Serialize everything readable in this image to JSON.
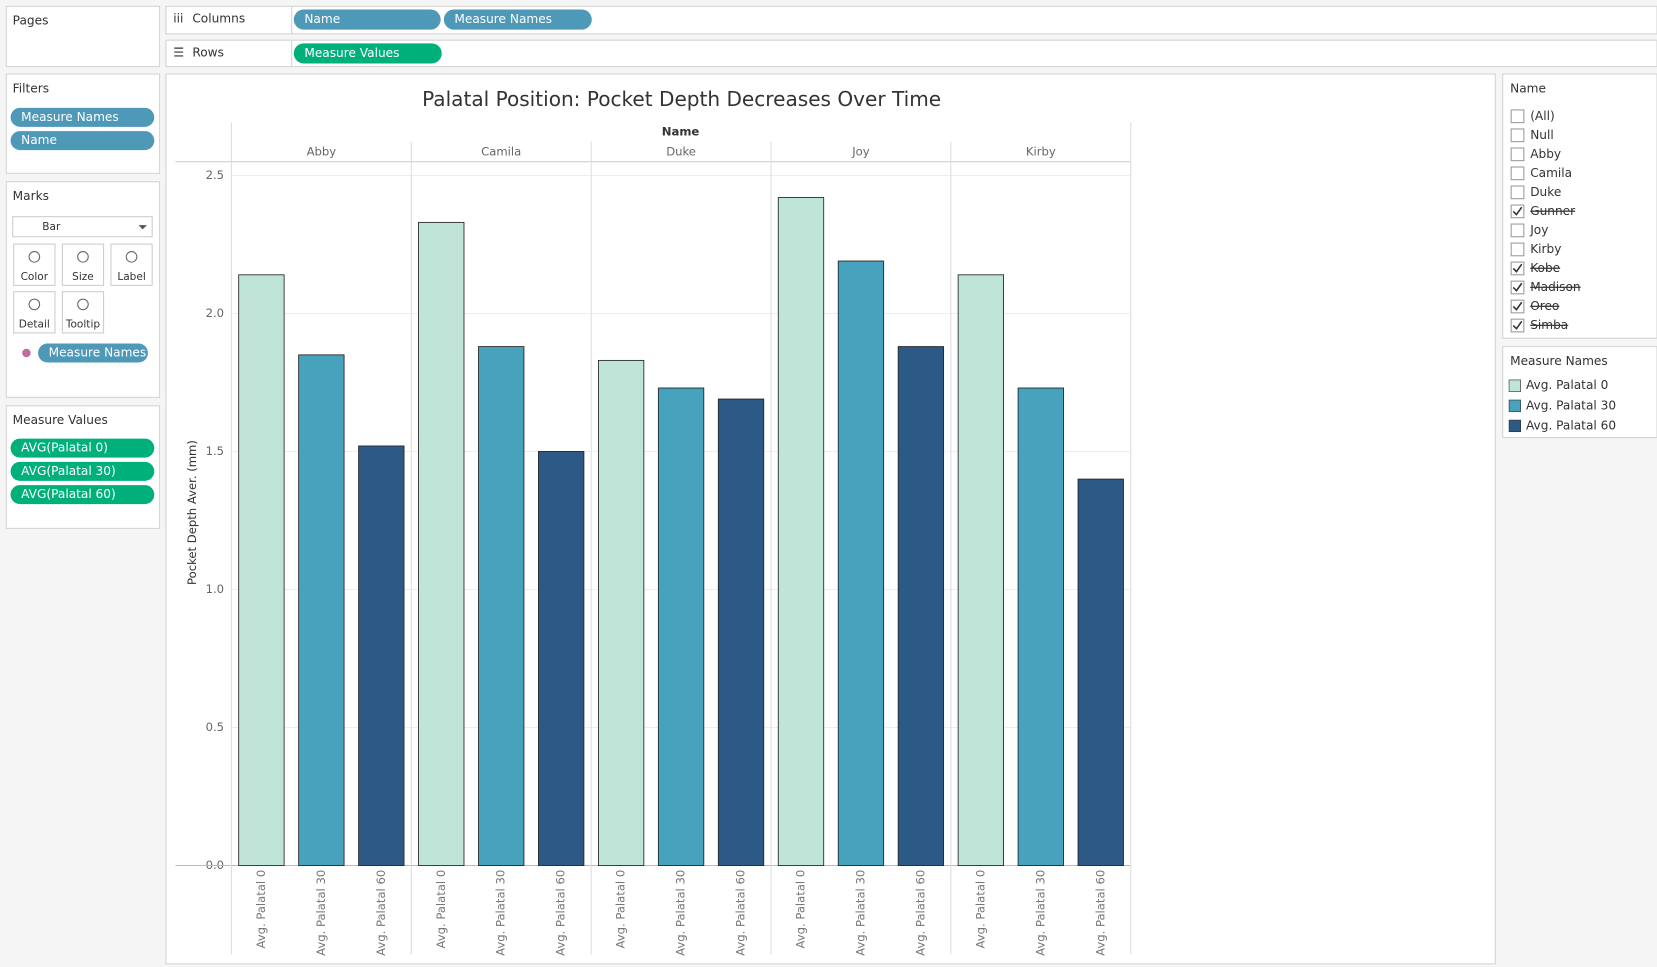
{
  "shelves": {
    "pages": "Pages",
    "columns": {
      "label": "Columns",
      "pills": [
        "Name",
        "Measure Names"
      ]
    },
    "rows": {
      "label": "Rows",
      "pills": [
        "Measure Values"
      ]
    }
  },
  "filters": {
    "title": "Filters",
    "pills": [
      "Measure Names",
      "Name"
    ]
  },
  "marks": {
    "title": "Marks",
    "type": "Bar",
    "buttons": [
      "Color",
      "Size",
      "Label",
      "Detail",
      "Tooltip"
    ],
    "pills": [
      "Measure Names"
    ]
  },
  "measure_values": {
    "title": "Measure Values",
    "pills": [
      "AVG(Palatal 0)",
      "AVG(Palatal 30)",
      "AVG(Palatal 60)"
    ]
  },
  "name_filter": {
    "title": "Name",
    "items": [
      {
        "label": "(All)",
        "checked": false
      },
      {
        "label": "Null",
        "checked": false
      },
      {
        "label": "Abby",
        "checked": false
      },
      {
        "label": "Camila",
        "checked": false
      },
      {
        "label": "Duke",
        "checked": false
      },
      {
        "label": "Gunner",
        "checked": true
      },
      {
        "label": "Joy",
        "checked": false
      },
      {
        "label": "Kirby",
        "checked": false
      },
      {
        "label": "Kobe",
        "checked": true
      },
      {
        "label": "Madison",
        "checked": true
      },
      {
        "label": "Oreo",
        "checked": true
      },
      {
        "label": "Simba",
        "checked": true
      }
    ]
  },
  "legend": {
    "title": "Measure Names"
  },
  "chart_data": {
    "type": "bar",
    "title": "Palatal Position: Pocket Depth Decreases Over Time",
    "column_header": "Name",
    "categories": [
      "Abby",
      "Camila",
      "Duke",
      "Joy",
      "Kirby"
    ],
    "series": [
      {
        "name": "Avg. Palatal 0",
        "color": "#bfe5d9",
        "values": [
          2.14,
          2.33,
          1.83,
          2.42,
          2.14
        ]
      },
      {
        "name": "Avg. Palatal 30",
        "color": "#47a2bd",
        "values": [
          1.85,
          1.88,
          1.73,
          2.19,
          1.73
        ]
      },
      {
        "name": "Avg. Palatal 60",
        "color": "#2c5985",
        "values": [
          1.52,
          1.5,
          1.69,
          1.88,
          1.4
        ]
      }
    ],
    "ylabel": "Pocket Depth Aver.  (mm)",
    "ylim": [
      0,
      2.5
    ],
    "yticks": [
      {
        "value": 0,
        "label": "0.0"
      },
      0.5,
      {
        "value": 1,
        "label": "1.0"
      },
      1.5,
      {
        "value": 2,
        "label": "2.0"
      },
      2.5
    ],
    "grid": true
  }
}
